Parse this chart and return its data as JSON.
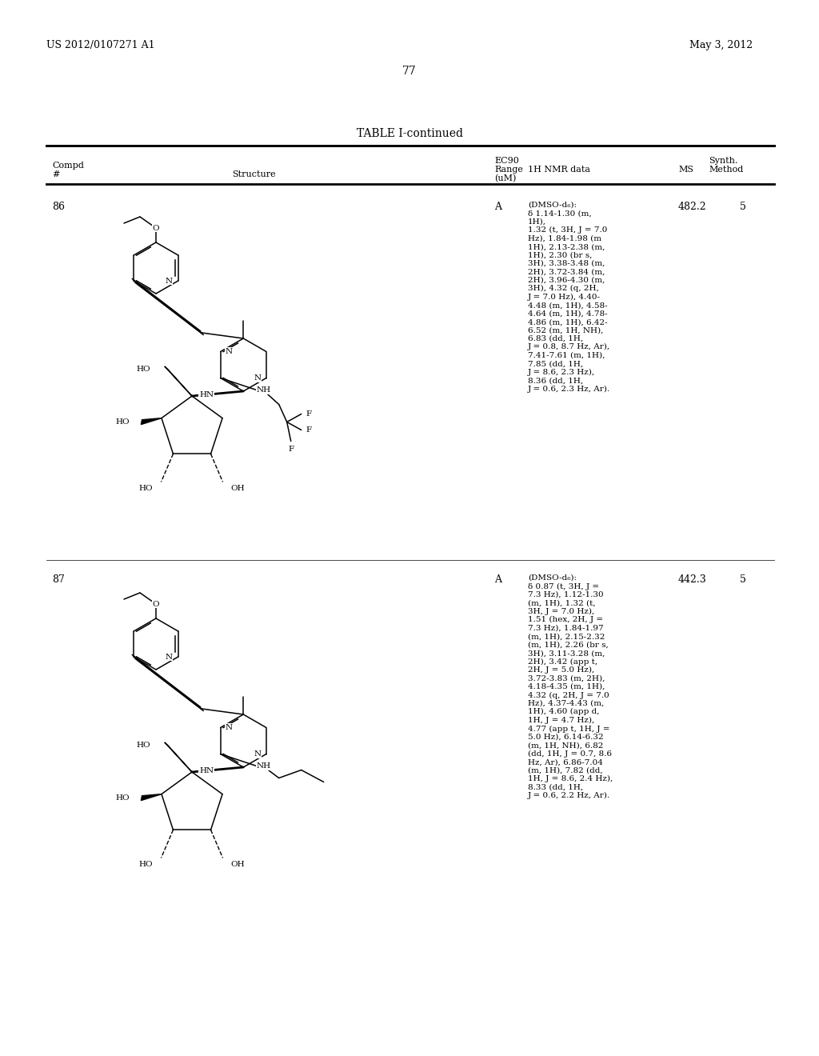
{
  "page_number": "77",
  "patent_number": "US 2012/0107271 A1",
  "patent_date": "May 3, 2012",
  "table_title": "TABLE I-continued",
  "background_color": "#ffffff",
  "text_color": "#000000",
  "row86": {
    "compd": "86",
    "ec90": "A",
    "ms": "482.2",
    "synth": "5",
    "nmr": "(DMSO-d₆):\nδ 1.14-1.30 (m,\n1H),\n1.32 (t, 3H, J = 7.0\nHz), 1.84-1.98 (m\n1H), 2.13-2.38 (m,\n1H), 2.30 (br s,\n3H), 3.38-3.48 (m,\n2H), 3.72-3.84 (m,\n2H), 3.96-4.30 (m,\n3H), 4.32 (q, 2H,\nJ = 7.0 Hz), 4.40-\n4.48 (m, 1H), 4.58-\n4.64 (m, 1H), 4.78-\n4.86 (m, 1H), 6.42-\n6.52 (m, 1H, NH),\n6.83 (dd, 1H,\nJ = 0.8, 8.7 Hz, Ar),\n7.41-7.61 (m, 1H),\n7.85 (dd, 1H,\nJ = 8.6, 2.3 Hz),\n8.36 (dd, 1H,\nJ = 0.6, 2.3 Hz, Ar)."
  },
  "row87": {
    "compd": "87",
    "ec90": "A",
    "ms": "442.3",
    "synth": "5",
    "nmr": "(DMSO-d₆):\nδ 0.87 (t, 3H, J =\n7.3 Hz), 1.12-1.30\n(m, 1H), 1.32 (t,\n3H, J = 7.0 Hz),\n1.51 (hex, 2H, J =\n7.3 Hz), 1.84-1.97\n(m, 1H), 2.15-2.32\n(m, 1H), 2.26 (br s,\n3H), 3.11-3.28 (m,\n2H), 3.42 (app t,\n2H, J = 5.0 Hz),\n3.72-3.83 (m, 2H),\n4.18-4.35 (m, 1H),\n4.32 (q, 2H, J = 7.0\nHz), 4.37-4.43 (m,\n1H), 4.60 (app d,\n1H, J = 4.7 Hz),\n4.77 (app t, 1H, J =\n5.0 Hz), 6.14-6.32\n(m, 1H, NH), 6.82\n(dd, 1H, J = 0.7, 8.6\nHz, Ar), 6.86-7.04\n(m, 1H), 7.82 (dd,\n1H, J = 8.6, 2.4 Hz),\n8.33 (dd, 1H,\nJ = 0.6, 2.2 Hz, Ar)."
  }
}
